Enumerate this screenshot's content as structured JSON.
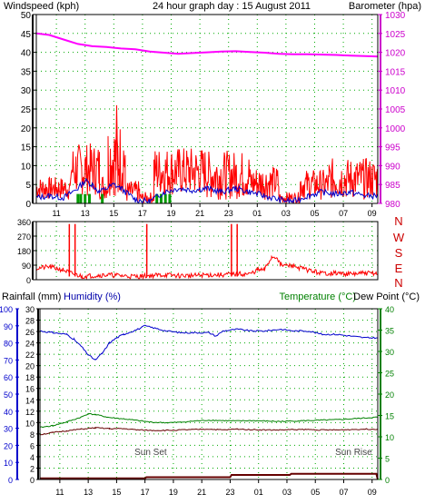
{
  "colors": {
    "wind": "#ff0000",
    "gust": "#ff0000",
    "avgwind": "#0000cc",
    "windcolor_label": "#cc0000",
    "baro": "#ff00ff",
    "rain_rate": "#009900",
    "humidity": "#0000cc",
    "temperature": "#008000",
    "dewpoint": "#660000",
    "rainfall": "#660000",
    "grid": "#00aa00",
    "axis_blue": "#0000cc",
    "axis_green": "#008000",
    "axis_mag": "#cc00cc"
  },
  "labels": {
    "windspeed": "Windspeed (kph)",
    "title": "24 hour graph day : 15 August 2011",
    "barometer": "Barometer (hpa)",
    "rainfall": "Rainfall (mm)",
    "humidity": "Humidity (%)",
    "temperature": "Temperature (°C)",
    "dewpoint": "Dew Point (°C)",
    "sunset": "Sun Set",
    "sunrise": "Sun Rise",
    "compass": [
      "N",
      "W",
      "S",
      "E",
      "N"
    ]
  },
  "chart_data": [
    {
      "type": "line",
      "name": "wind",
      "x_ticks": [
        "11",
        "13",
        "15",
        "17",
        "19",
        "21",
        "23",
        "01",
        "03",
        "05",
        "07",
        "09"
      ],
      "left_ticks": [
        0,
        5,
        10,
        15,
        20,
        25,
        30,
        35,
        40,
        45,
        50
      ],
      "right_ticks": [
        980,
        985,
        990,
        995,
        1000,
        1005,
        1010,
        1015,
        1020,
        1025,
        1030
      ],
      "ylim_left": [
        0,
        50
      ],
      "ylim_right": [
        980,
        1030
      ],
      "barometer": [
        [
          9.6,
          1025.0
        ],
        [
          10.5,
          1024.6
        ],
        [
          11.5,
          1023.4
        ],
        [
          12.5,
          1022.2
        ],
        [
          13.5,
          1021.6
        ],
        [
          14.5,
          1021.4
        ],
        [
          15.5,
          1021.0
        ],
        [
          16.5,
          1020.8
        ],
        [
          17.5,
          1020.2
        ],
        [
          18.5,
          1019.9
        ],
        [
          19.5,
          1019.6
        ],
        [
          20.5,
          1019.8
        ],
        [
          21.5,
          1020.0
        ],
        [
          22.5,
          1020.2
        ],
        [
          23.5,
          1020.3
        ],
        [
          24.5,
          1020.1
        ],
        [
          25.5,
          1019.9
        ],
        [
          26.5,
          1019.6
        ],
        [
          27.5,
          1019.5
        ],
        [
          28.5,
          1019.5
        ],
        [
          29.5,
          1019.4
        ],
        [
          30.5,
          1019.3
        ],
        [
          31.5,
          1019.1
        ],
        [
          32.5,
          1019.0
        ],
        [
          33.4,
          1018.9
        ]
      ],
      "wind_segments": [
        {
          "x": [
            9.6,
            12.0
          ],
          "lo": 1,
          "hi": 7
        },
        {
          "x": [
            12.0,
            14.0
          ],
          "lo": 2,
          "hi": 16
        },
        {
          "x": [
            14.0,
            14.6
          ],
          "lo": 1,
          "hi": 8
        },
        {
          "x": [
            14.6,
            15.8
          ],
          "lo": 2,
          "hi": 22
        },
        {
          "x": [
            15.8,
            16.8
          ],
          "lo": 0,
          "hi": 6
        },
        {
          "x": [
            16.8,
            17.8
          ],
          "lo": 0,
          "hi": 3
        },
        {
          "x": [
            17.8,
            21.5
          ],
          "lo": 2,
          "hi": 15
        },
        {
          "x": [
            21.5,
            24.5
          ],
          "lo": 1,
          "hi": 14
        },
        {
          "x": [
            24.5,
            26.5
          ],
          "lo": 1,
          "hi": 10
        },
        {
          "x": [
            26.5,
            28.0
          ],
          "lo": 0,
          "hi": 3
        },
        {
          "x": [
            28.0,
            30.0
          ],
          "lo": 1,
          "hi": 9
        },
        {
          "x": [
            30.0,
            33.4
          ],
          "lo": 1,
          "hi": 12
        }
      ],
      "avg_wind": [
        [
          9.6,
          1.5
        ],
        [
          10.5,
          2
        ],
        [
          11.5,
          1.5
        ],
        [
          12.5,
          4
        ],
        [
          13.0,
          6
        ],
        [
          13.5,
          5
        ],
        [
          14.0,
          3
        ],
        [
          15.0,
          5
        ],
        [
          15.5,
          4
        ],
        [
          16.5,
          1
        ],
        [
          17.5,
          0.5
        ],
        [
          18.5,
          3
        ],
        [
          19.5,
          4
        ],
        [
          20.5,
          3.5
        ],
        [
          21.5,
          4
        ],
        [
          22.5,
          3
        ],
        [
          23.5,
          4
        ],
        [
          24.5,
          3
        ],
        [
          25.5,
          2
        ],
        [
          26.5,
          1
        ],
        [
          27.5,
          0.5
        ],
        [
          28.5,
          2
        ],
        [
          29.5,
          3
        ],
        [
          30.5,
          2.5
        ],
        [
          31.5,
          3
        ],
        [
          32.5,
          2
        ],
        [
          33.4,
          2
        ]
      ],
      "rain_rate_bars": [
        12.5,
        12.7,
        13.0,
        13.3,
        14.2,
        18.0,
        18.3,
        18.6,
        18.9
      ]
    },
    {
      "type": "line",
      "name": "wind_direction",
      "ylim": [
        0,
        360
      ],
      "left_ticks": [
        0,
        90,
        180,
        270,
        360
      ],
      "direction": [
        [
          9.6,
          70
        ],
        [
          10.5,
          80
        ],
        [
          11.5,
          60
        ],
        [
          12.0,
          40
        ],
        [
          12.8,
          20
        ],
        [
          13.5,
          25
        ],
        [
          14.5,
          30
        ],
        [
          15.5,
          25
        ],
        [
          16.5,
          20
        ],
        [
          17.5,
          25
        ],
        [
          18.5,
          30
        ],
        [
          19.5,
          25
        ],
        [
          20.5,
          25
        ],
        [
          21.5,
          30
        ],
        [
          22.5,
          30
        ],
        [
          23.5,
          35
        ],
        [
          24.5,
          35
        ],
        [
          25.0,
          60
        ],
        [
          25.5,
          60
        ],
        [
          26.0,
          140
        ],
        [
          26.4,
          140
        ],
        [
          26.6,
          90
        ],
        [
          27.5,
          85
        ],
        [
          28.5,
          60
        ],
        [
          29.5,
          40
        ],
        [
          30.5,
          40
        ],
        [
          31.5,
          35
        ],
        [
          32.5,
          40
        ],
        [
          33.4,
          40
        ]
      ],
      "spikes": [
        11.9,
        12.3,
        17.3,
        23.2,
        23.6
      ]
    },
    {
      "type": "line",
      "name": "temperature_humidity_rain",
      "humidity_ticks": [
        0,
        10,
        20,
        30,
        40,
        50,
        60,
        70,
        80,
        90,
        100
      ],
      "rainfall_ticks": [
        0,
        2,
        4,
        6,
        8,
        10,
        12,
        14,
        16,
        18,
        20,
        22,
        24,
        26,
        28,
        30
      ],
      "temperature_ticks": [
        0,
        5,
        10,
        15,
        20,
        25,
        30,
        35,
        40
      ],
      "humidity": [
        [
          9.6,
          87
        ],
        [
          10.5,
          86
        ],
        [
          11.5,
          85
        ],
        [
          12.0,
          82
        ],
        [
          12.5,
          78
        ],
        [
          13.0,
          73
        ],
        [
          13.5,
          70
        ],
        [
          14.0,
          74
        ],
        [
          14.5,
          80
        ],
        [
          15.0,
          83
        ],
        [
          15.5,
          85
        ],
        [
          16.5,
          88
        ],
        [
          17.0,
          90
        ],
        [
          17.5,
          89
        ],
        [
          18.5,
          87
        ],
        [
          19.5,
          86
        ],
        [
          20.5,
          86
        ],
        [
          21.5,
          86
        ],
        [
          22.0,
          84
        ],
        [
          22.5,
          87
        ],
        [
          23.5,
          88
        ],
        [
          24.5,
          87
        ],
        [
          25.5,
          87
        ],
        [
          26.5,
          88
        ],
        [
          27.5,
          87
        ],
        [
          28.5,
          87
        ],
        [
          29.5,
          85
        ],
        [
          30.5,
          85
        ],
        [
          31.5,
          84
        ],
        [
          32.5,
          83
        ],
        [
          33.4,
          83
        ]
      ],
      "temperature": [
        [
          9.6,
          12.2
        ],
        [
          10.5,
          12.6
        ],
        [
          11.5,
          13.5
        ],
        [
          12.5,
          14.6
        ],
        [
          13.0,
          15.4
        ],
        [
          13.5,
          15.2
        ],
        [
          14.5,
          14.5
        ],
        [
          15.5,
          14.2
        ],
        [
          16.5,
          13.8
        ],
        [
          17.5,
          13.4
        ],
        [
          18.5,
          13.3
        ],
        [
          19.5,
          13.4
        ],
        [
          20.5,
          13.7
        ],
        [
          21.5,
          13.9
        ],
        [
          22.5,
          13.8
        ],
        [
          23.5,
          13.7
        ],
        [
          24.5,
          13.8
        ],
        [
          25.5,
          13.7
        ],
        [
          26.5,
          13.6
        ],
        [
          27.5,
          13.7
        ],
        [
          28.5,
          13.8
        ],
        [
          29.5,
          13.9
        ],
        [
          30.5,
          14.0
        ],
        [
          31.5,
          14.2
        ],
        [
          32.5,
          14.4
        ],
        [
          33.4,
          14.6
        ]
      ],
      "dewpoint": [
        [
          9.6,
          10.5
        ],
        [
          10.5,
          11.0
        ],
        [
          11.5,
          11.4
        ],
        [
          12.5,
          11.8
        ],
        [
          13.5,
          12.1
        ],
        [
          14.5,
          11.9
        ],
        [
          15.5,
          11.9
        ],
        [
          16.5,
          11.6
        ],
        [
          17.5,
          11.5
        ],
        [
          18.5,
          11.5
        ],
        [
          19.5,
          11.6
        ],
        [
          20.5,
          11.7
        ],
        [
          21.5,
          11.8
        ],
        [
          22.5,
          11.6
        ],
        [
          23.5,
          11.8
        ],
        [
          24.5,
          11.7
        ],
        [
          25.5,
          11.6
        ],
        [
          26.5,
          11.6
        ],
        [
          27.5,
          11.7
        ],
        [
          28.5,
          11.7
        ],
        [
          29.5,
          11.6
        ],
        [
          30.5,
          11.6
        ],
        [
          31.5,
          11.7
        ],
        [
          32.5,
          11.8
        ],
        [
          33.4,
          11.8
        ]
      ],
      "rainfall": [
        [
          9.6,
          0.2
        ],
        [
          17.0,
          0.2
        ],
        [
          17.1,
          0.4
        ],
        [
          23.0,
          0.4
        ],
        [
          23.1,
          0.8
        ],
        [
          27.2,
          0.8
        ],
        [
          27.3,
          1.0
        ],
        [
          33.3,
          1.0
        ],
        [
          33.4,
          0.0
        ]
      ],
      "sunset_x": 17.4,
      "sunrise_x": 31.7
    }
  ]
}
